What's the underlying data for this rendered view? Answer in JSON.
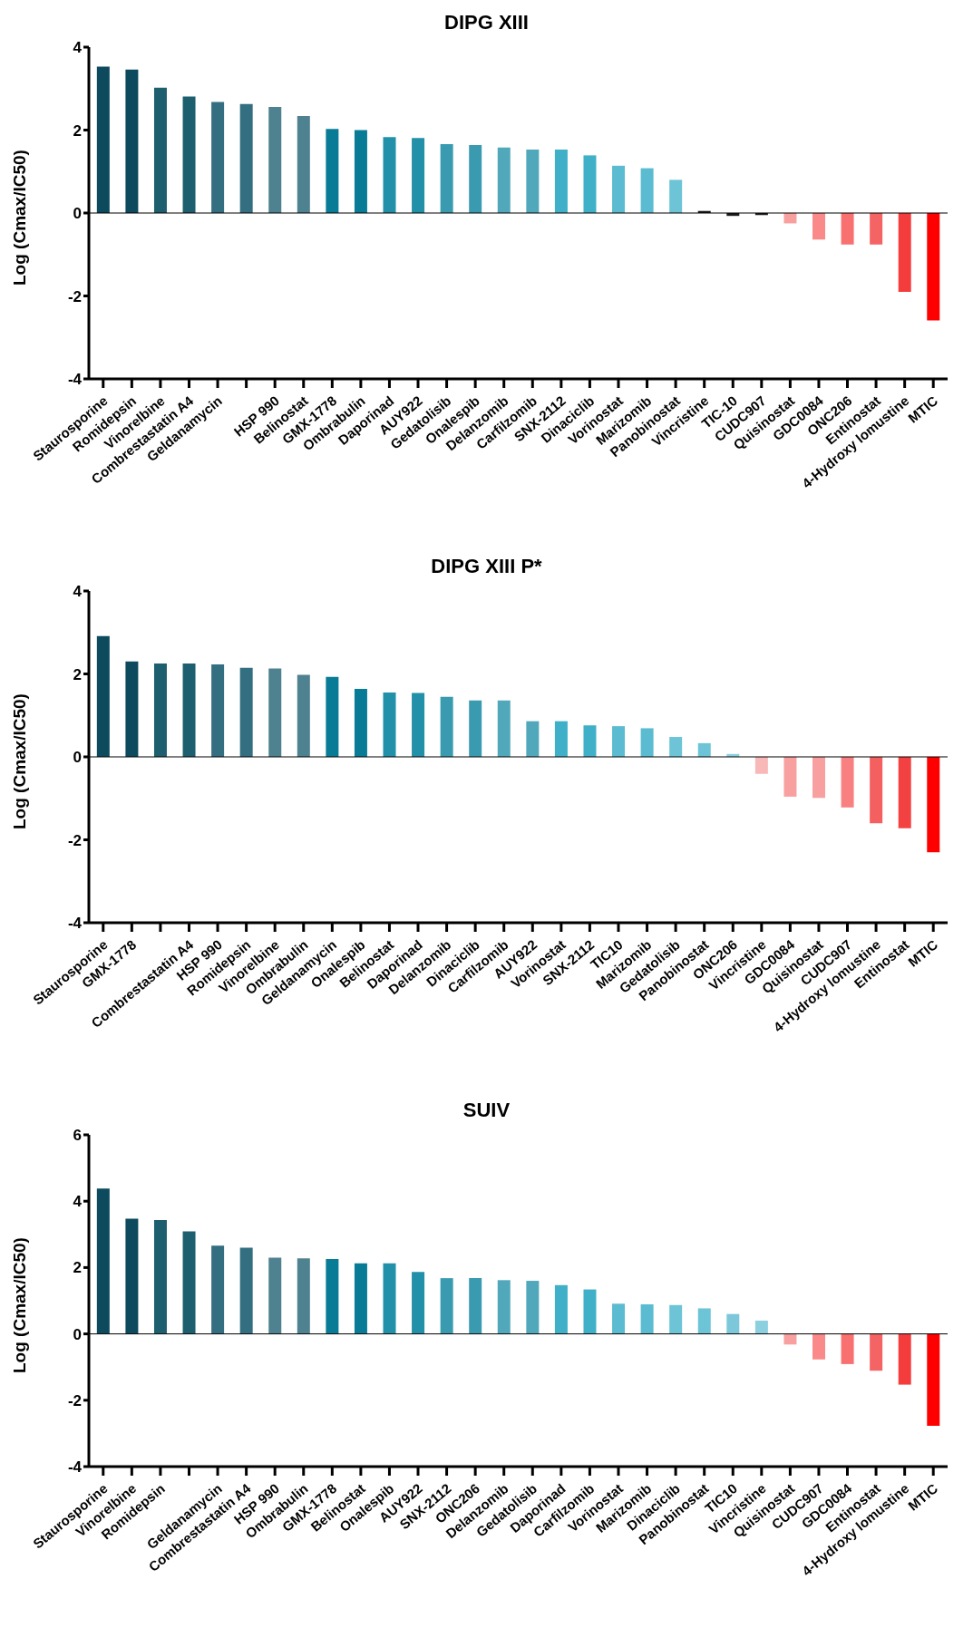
{
  "chart_data": [
    {
      "type": "bar",
      "title": "DIPG XIII",
      "ylabel": "Log (Cmax/IC50)",
      "ylim": [
        -4,
        4
      ],
      "yticks": [
        -4,
        -2,
        0,
        2,
        4
      ],
      "grid": false,
      "legend": false,
      "ref_lines": [
        {
          "axis": "y",
          "value": 0,
          "color": "#000000"
        }
      ],
      "categories": [
        "Staurosporine",
        "Romidepsin",
        "Vinorelbine",
        "Combrestastatin A4",
        "Geldanamycin",
        null,
        "HSP 990",
        "Belinostat",
        "GMX-1778",
        "Ombrabulin",
        "Daporinad",
        "AUY922",
        "Gedatolisib",
        "Onalespib",
        "Delanzomib",
        "Carfilzomib",
        "SNX-2112",
        "Dinaciclib",
        "Vorinostat",
        "Marizomib",
        "Panobinostat",
        "Vincristine",
        "TIC-10",
        "CUDC907",
        "Quisinostat",
        "GDC0084",
        "ONC206",
        "Entinostat",
        "4-Hydroxy lomustine",
        "MTIC"
      ],
      "values": [
        3.53,
        3.46,
        3.02,
        2.81,
        2.68,
        2.63,
        2.56,
        2.34,
        2.03,
        2.0,
        1.83,
        1.81,
        1.66,
        1.64,
        1.58,
        1.53,
        1.53,
        1.39,
        1.14,
        1.08,
        0.8,
        0.05,
        -0.07,
        -0.05,
        -0.25,
        -0.64,
        -0.76,
        -0.76,
        -1.9,
        -2.59
      ],
      "colors": [
        "#0d4a5e",
        "#0d4a5e",
        "#1d5f6e",
        "#1d5f6e",
        "#336f80",
        "#336f80",
        "#4f8290",
        "#4f8290",
        "#087c96",
        "#087c96",
        "#2190a8",
        "#2190a8",
        "#3a9bb0",
        "#3a9bb0",
        "#52a8bb",
        "#52a8bb",
        "#3fb0c8",
        "#3fb0c8",
        "#5bbbd0",
        "#5bbbd0",
        "#6cc4d6",
        "#1a1a1a",
        "#1a1a1a",
        "#1a1a1a",
        "#f8a0a0",
        "#fa8a8a",
        "#f87070",
        "#f46464",
        "#f53c3c",
        "#ff0000"
      ]
    },
    {
      "type": "bar",
      "title": "DIPG XIII P*",
      "ylabel": "Log (Cmax/IC50)",
      "ylim": [
        -4,
        4
      ],
      "yticks": [
        -4,
        -2,
        0,
        2,
        4
      ],
      "grid": false,
      "legend": false,
      "ref_lines": [
        {
          "axis": "y",
          "value": 0,
          "color": "#000000"
        }
      ],
      "categories": [
        "Staurosporine",
        "GMX-1778",
        null,
        "Combrestastatin A4",
        "HSP 990",
        "Romidepsin",
        "Vinorelbine",
        "Ombrabulin",
        "Geldanamycin",
        "Onalespib",
        "Belinostat",
        "Daporinad",
        "Delanzomib",
        "Dinaciclib",
        "Carfilzomib",
        "AUY922",
        "Vorinostat",
        "SNX-2112",
        "TIC10",
        "Marizomib",
        "Gedatolisib",
        "Panobinostat",
        "ONC206",
        "Vincristine",
        "GDC0084",
        "Quisinostat",
        "CUDC907",
        "4-Hydroxy lomustine",
        "Entinostat",
        "MTIC"
      ],
      "values": [
        2.91,
        2.3,
        2.25,
        2.25,
        2.23,
        2.15,
        2.13,
        1.98,
        1.93,
        1.64,
        1.55,
        1.54,
        1.45,
        1.36,
        1.36,
        0.86,
        0.86,
        0.76,
        0.74,
        0.69,
        0.48,
        0.33,
        0.07,
        -0.41,
        -0.96,
        -0.99,
        -1.22,
        -1.6,
        -1.72,
        -2.3
      ],
      "colors": [
        "#0d4a5e",
        "#0d4a5e",
        "#1d5f6e",
        "#1d5f6e",
        "#336f80",
        "#336f80",
        "#4f8290",
        "#4f8290",
        "#087c96",
        "#087c96",
        "#2190a8",
        "#2190a8",
        "#3a9bb0",
        "#3a9bb0",
        "#52a8bb",
        "#52a8bb",
        "#3fb0c8",
        "#3fb0c8",
        "#5bbbd0",
        "#5bbbd0",
        "#6cc4d6",
        "#6cc4d6",
        "#8ccfdf",
        "#f8b8b8",
        "#f8a0a0",
        "#f8a0a0",
        "#f88080",
        "#f46060",
        "#f34040",
        "#ff0000"
      ]
    },
    {
      "type": "bar",
      "title": "SUIV",
      "ylabel": "Log (Cmax/IC50)",
      "ylim": [
        -4,
        6
      ],
      "yticks": [
        -4,
        -2,
        0,
        2,
        4,
        6
      ],
      "grid": false,
      "legend": false,
      "ref_lines": [
        {
          "axis": "y",
          "value": 0,
          "color": "#000000"
        }
      ],
      "categories": [
        "Staurosporine",
        "Vinorelbine",
        "Romidepsin",
        null,
        "Geldanamycin",
        "Combrestastatin A4",
        "HSP 990",
        "Ombrabulin",
        "GMX-1778",
        "Belinostat",
        "Onalespib",
        "AUY922",
        "SNX-2112",
        "ONC206",
        "Delanzomib",
        "Gedatolisib",
        "Daporinad",
        "Carfilzomib",
        "Vorinostat",
        "Marizomib",
        "Dinaciclib",
        "Panobinostat",
        "TIC10",
        "Vincristine",
        "Quisinostat",
        "CUDC907",
        "GDC0084",
        "Entinostat",
        "4-Hydroxy lomustine",
        "MTIC"
      ],
      "values": [
        4.38,
        3.47,
        3.43,
        3.09,
        2.66,
        2.6,
        2.3,
        2.28,
        2.26,
        2.13,
        2.13,
        1.87,
        1.68,
        1.68,
        1.62,
        1.6,
        1.47,
        1.34,
        0.91,
        0.89,
        0.87,
        0.77,
        0.6,
        0.4,
        -0.32,
        -0.77,
        -0.91,
        -1.11,
        -1.53,
        -2.77
      ],
      "colors": [
        "#0d4a5e",
        "#0d4a5e",
        "#1d5f6e",
        "#1d5f6e",
        "#336f80",
        "#336f80",
        "#4f8290",
        "#4f8290",
        "#087c96",
        "#087c96",
        "#2190a8",
        "#2190a8",
        "#3a9bb0",
        "#3a9bb0",
        "#52a8bb",
        "#52a8bb",
        "#3fb0c8",
        "#3fb0c8",
        "#5bbbd0",
        "#5bbbd0",
        "#6cc4d6",
        "#6cc4d6",
        "#7cc8da",
        "#8ccfdf",
        "#f8a0a0",
        "#fa8a8a",
        "#f87070",
        "#f46464",
        "#f53c3c",
        "#ff0000"
      ]
    }
  ]
}
